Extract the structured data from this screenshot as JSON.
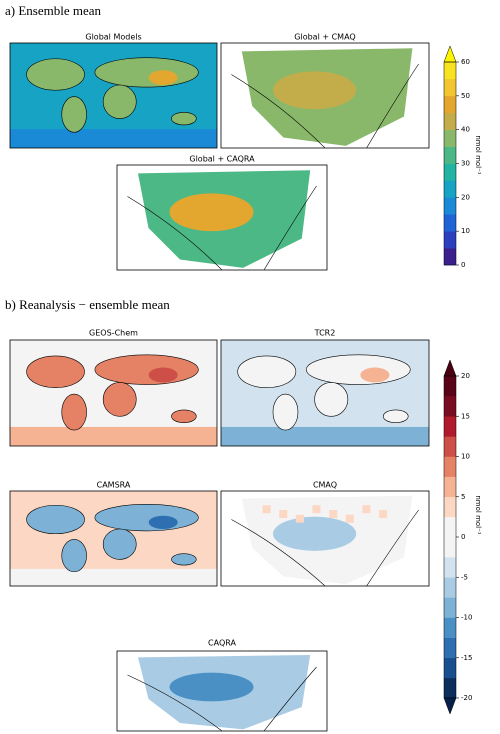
{
  "sections": [
    {
      "title": "a) Ensemble mean",
      "panels": [
        "Global Models",
        "Global + CMAQ",
        "Global + CAQRA"
      ],
      "colorbar": {
        "label": "nmol mol⁻¹",
        "lim": [
          0,
          60
        ],
        "ticks": [
          0,
          10,
          20,
          30,
          40,
          50,
          60
        ],
        "extend": "max",
        "colors": [
          "#3b1f8c",
          "#2b3fbf",
          "#1f63d6",
          "#1b8ad6",
          "#17a3c4",
          "#23b3a3",
          "#4cb886",
          "#8ab86a",
          "#c2ad4a",
          "#e3a72f",
          "#f3c530",
          "#f7e224"
        ],
        "over": "#fdf500"
      }
    },
    {
      "title": "b) Reanalysis − ensemble mean",
      "panels": [
        "GEOS-Chem",
        "TCR2",
        "CAMSRA",
        "CMAQ",
        "CAQRA"
      ],
      "colorbar": {
        "label": "nmol mol⁻¹",
        "lim": [
          -20,
          20
        ],
        "ticks": [
          -20,
          -15,
          -10,
          -5,
          0,
          5,
          10,
          15,
          20
        ],
        "extend": "both",
        "colors": [
          "#0b2e5c",
          "#1a4f8f",
          "#2d6fb0",
          "#4b90c4",
          "#7db2d6",
          "#a9cce4",
          "#d2e3ef",
          "#f4f4f4",
          "#f4f4f4",
          "#fbd7c4",
          "#f6b394",
          "#e58266",
          "#cd4f48",
          "#b01a2c",
          "#7a0c22",
          "#5a0418"
        ],
        "under": "#07204a",
        "over": "#4a0010"
      }
    }
  ]
}
